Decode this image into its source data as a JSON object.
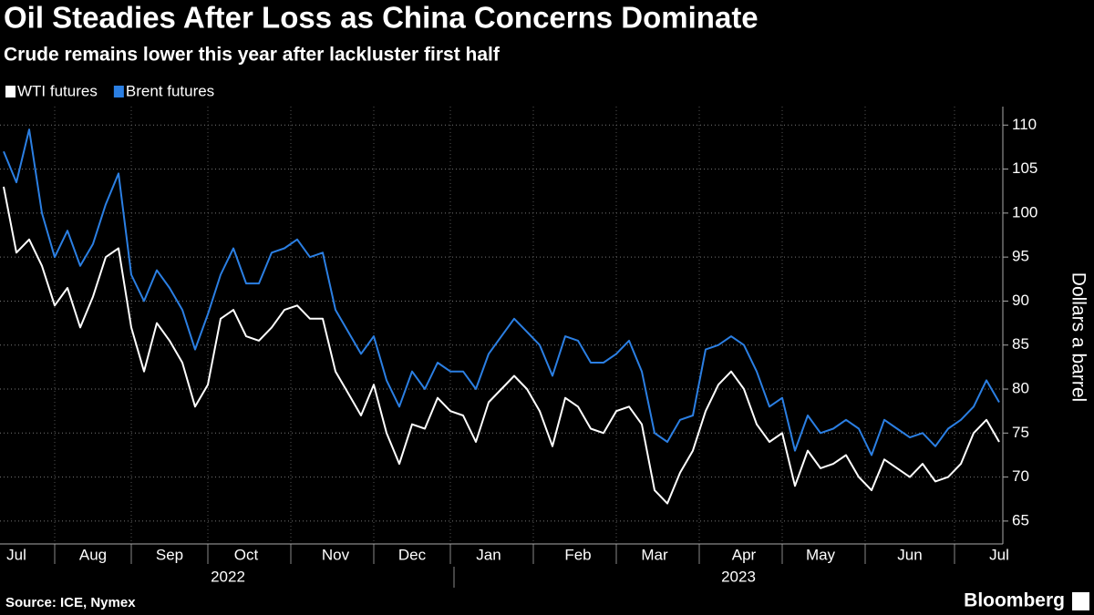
{
  "chart_data": {
    "type": "line",
    "title": "Oil Steadies After Loss as China Concerns Dominate",
    "subtitle": "Crude remains lower this year after lackluster first half",
    "y_label": "Dollars a barrel",
    "source": "Source: ICE, Nymex",
    "brand": "Bloomberg",
    "year_labels": [
      "2022",
      "2023"
    ],
    "categories": [
      null,
      "Jul",
      null,
      null,
      null,
      null,
      null,
      "Aug",
      null,
      null,
      null,
      null,
      null,
      "Sep",
      null,
      null,
      null,
      null,
      null,
      "Oct",
      null,
      null,
      null,
      null,
      null,
      null,
      "Nov",
      null,
      null,
      null,
      null,
      null,
      "Dec",
      null,
      null,
      null,
      null,
      null,
      "Jan",
      null,
      null,
      null,
      null,
      null,
      null,
      "Feb",
      null,
      null,
      null,
      null,
      null,
      "Mar",
      null,
      null,
      null,
      null,
      null,
      null,
      "Apr",
      null,
      null,
      null,
      null,
      null,
      "May",
      null,
      null,
      null,
      null,
      null,
      null,
      "Jun",
      null,
      null,
      null,
      null,
      null,
      null,
      "Jul"
    ],
    "series": [
      {
        "name": "WTI futures",
        "color": "#ffffff",
        "values": [
          103,
          95.5,
          97,
          94,
          89.5,
          91.5,
          87,
          90.5,
          95,
          96,
          87,
          82,
          87.5,
          85.5,
          83,
          78,
          80.5,
          88,
          89,
          86,
          85.5,
          87,
          89,
          89.5,
          88,
          88,
          82,
          79.5,
          77,
          80.5,
          75,
          71.5,
          76,
          75.5,
          79,
          77.5,
          77,
          74,
          78.5,
          80,
          81.5,
          80,
          77.5,
          73.5,
          79,
          78,
          75.5,
          75,
          77.5,
          78,
          76,
          68.5,
          67,
          70.5,
          73,
          77.5,
          80.5,
          82,
          80,
          76,
          74,
          75,
          69,
          73,
          71,
          71.5,
          72.5,
          70,
          68.5,
          72,
          71,
          70,
          71.5,
          69.5,
          70,
          71.5,
          75,
          76.5,
          74
        ]
      },
      {
        "name": "Brent futures",
        "color": "#2b7fe3",
        "values": [
          107,
          103.5,
          109.5,
          100,
          95,
          98,
          94,
          96.5,
          101,
          104.5,
          93,
          90,
          93.5,
          91.5,
          89,
          84.5,
          88.5,
          93,
          96,
          92,
          92,
          95.5,
          96,
          97,
          95,
          95.5,
          89,
          86.5,
          84,
          86,
          81,
          78,
          82,
          80,
          83,
          82,
          82,
          80,
          84,
          86,
          88,
          86.5,
          85,
          81.5,
          86,
          85.5,
          83,
          83,
          84,
          85.5,
          82,
          75,
          74,
          76.5,
          77,
          84.5,
          85,
          86,
          85,
          82,
          78,
          79,
          73,
          77,
          75,
          75.5,
          76.5,
          75.5,
          72.5,
          76.5,
          75.5,
          74.5,
          75,
          73.5,
          75.5,
          76.5,
          78,
          81,
          78.5
        ]
      }
    ],
    "ylim": [
      62.4,
      112.1
    ],
    "yticks": [
      65,
      70,
      75,
      80,
      85,
      90,
      95,
      100,
      105,
      110
    ],
    "grid": true
  }
}
